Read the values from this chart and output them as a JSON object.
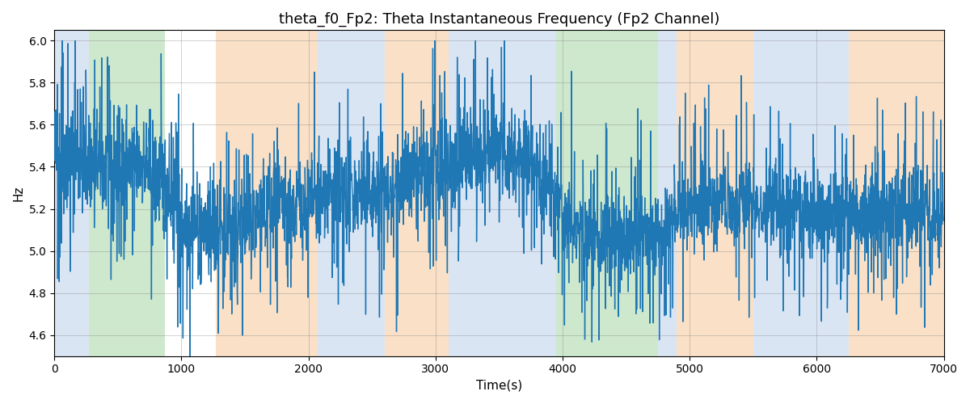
{
  "title": "theta_f0_Fp2: Theta Instantaneous Frequency (Fp2 Channel)",
  "xlabel": "Time(s)",
  "ylabel": "Hz",
  "xlim": [
    0,
    7000
  ],
  "ylim": [
    4.5,
    6.05
  ],
  "yticks": [
    4.6,
    4.8,
    5.0,
    5.2,
    5.4,
    5.6,
    5.8,
    6.0
  ],
  "xticks": [
    0,
    1000,
    2000,
    3000,
    4000,
    5000,
    6000,
    7000
  ],
  "line_color": "#1f77b4",
  "line_width": 1.0,
  "seed": 42,
  "n_points": 3500,
  "time_start": 0,
  "time_end": 7000,
  "bg_bands": [
    {
      "xmin": 0,
      "xmax": 270,
      "color": "#aec6e8",
      "alpha": 0.45
    },
    {
      "xmin": 270,
      "xmax": 870,
      "color": "#90cc90",
      "alpha": 0.45
    },
    {
      "xmin": 1270,
      "xmax": 2070,
      "color": "#f5c89a",
      "alpha": 0.55
    },
    {
      "xmin": 2070,
      "xmax": 2600,
      "color": "#aec6e8",
      "alpha": 0.45
    },
    {
      "xmin": 2600,
      "xmax": 3100,
      "color": "#f5c89a",
      "alpha": 0.55
    },
    {
      "xmin": 3100,
      "xmax": 3950,
      "color": "#aec6e8",
      "alpha": 0.45
    },
    {
      "xmin": 3950,
      "xmax": 4750,
      "color": "#90cc90",
      "alpha": 0.45
    },
    {
      "xmin": 4750,
      "xmax": 4900,
      "color": "#aec6e8",
      "alpha": 0.45
    },
    {
      "xmin": 4900,
      "xmax": 5500,
      "color": "#f5c89a",
      "alpha": 0.55
    },
    {
      "xmin": 5500,
      "xmax": 6250,
      "color": "#aec6e8",
      "alpha": 0.45
    },
    {
      "xmin": 6250,
      "xmax": 7000,
      "color": "#f5c89a",
      "alpha": 0.55
    }
  ],
  "bg_color": "#ffffff",
  "title_fontsize": 13,
  "label_fontsize": 11,
  "tick_fontsize": 10,
  "figsize": [
    12.0,
    5.0
  ],
  "dpi": 100
}
